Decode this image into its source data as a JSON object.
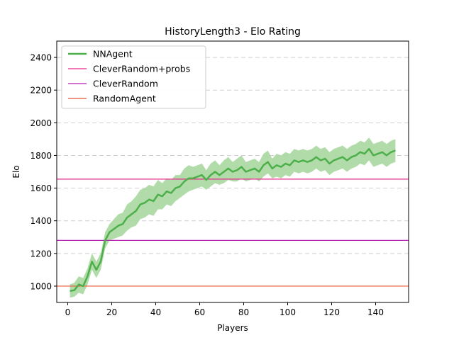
{
  "chart_data": {
    "type": "line",
    "title": "HistoryLength3 - Elo Rating",
    "xlabel": "Players",
    "ylabel": "Elo",
    "xlim": [
      -5,
      155
    ],
    "ylim": [
      900,
      2500
    ],
    "xticks": [
      0,
      20,
      40,
      60,
      80,
      100,
      120,
      140
    ],
    "yticks": [
      1000,
      1200,
      1400,
      1600,
      1800,
      2000,
      2200,
      2400
    ],
    "grid": "horizontal dashed",
    "legend_position": "top-left",
    "series": [
      {
        "name": "NNAgent",
        "color": "#4daf4a",
        "band_color": "#a8d8a0",
        "x": [
          1,
          3,
          5,
          7,
          9,
          11,
          13,
          15,
          17,
          19,
          21,
          23,
          25,
          27,
          29,
          31,
          33,
          35,
          37,
          39,
          41,
          43,
          45,
          47,
          49,
          51,
          53,
          55,
          57,
          59,
          61,
          63,
          65,
          67,
          69,
          71,
          73,
          75,
          77,
          79,
          81,
          83,
          85,
          87,
          89,
          91,
          93,
          95,
          97,
          99,
          101,
          103,
          105,
          107,
          109,
          111,
          113,
          115,
          117,
          119,
          121,
          123,
          125,
          127,
          129,
          131,
          133,
          135,
          137,
          139,
          141,
          143,
          145,
          147,
          149
        ],
        "values": [
          970,
          975,
          1010,
          1000,
          1060,
          1150,
          1100,
          1150,
          1280,
          1330,
          1350,
          1370,
          1380,
          1420,
          1440,
          1460,
          1500,
          1510,
          1530,
          1520,
          1560,
          1550,
          1580,
          1570,
          1600,
          1610,
          1640,
          1660,
          1660,
          1670,
          1680,
          1650,
          1680,
          1700,
          1680,
          1700,
          1720,
          1700,
          1710,
          1730,
          1700,
          1710,
          1720,
          1700,
          1740,
          1760,
          1720,
          1740,
          1730,
          1750,
          1740,
          1770,
          1760,
          1770,
          1760,
          1770,
          1790,
          1770,
          1780,
          1750,
          1770,
          1780,
          1790,
          1770,
          1790,
          1800,
          1820,
          1810,
          1840,
          1800,
          1810,
          1820,
          1800,
          1820,
          1830
        ],
        "band_lower": [
          930,
          935,
          960,
          950,
          1010,
          1100,
          1050,
          1100,
          1230,
          1280,
          1290,
          1300,
          1310,
          1340,
          1360,
          1370,
          1410,
          1420,
          1440,
          1430,
          1470,
          1470,
          1500,
          1490,
          1520,
          1540,
          1560,
          1580,
          1590,
          1600,
          1610,
          1590,
          1610,
          1630,
          1620,
          1630,
          1650,
          1640,
          1640,
          1660,
          1640,
          1650,
          1660,
          1640,
          1670,
          1690,
          1660,
          1670,
          1660,
          1680,
          1670,
          1700,
          1690,
          1700,
          1690,
          1700,
          1720,
          1700,
          1710,
          1680,
          1700,
          1710,
          1720,
          1700,
          1720,
          1730,
          1750,
          1740,
          1770,
          1730,
          1740,
          1750,
          1730,
          1750,
          1760
        ],
        "band_upper": [
          1010,
          1020,
          1060,
          1050,
          1110,
          1200,
          1150,
          1200,
          1330,
          1380,
          1410,
          1440,
          1450,
          1500,
          1520,
          1550,
          1590,
          1600,
          1620,
          1610,
          1650,
          1630,
          1660,
          1650,
          1680,
          1680,
          1720,
          1740,
          1730,
          1740,
          1750,
          1710,
          1750,
          1770,
          1740,
          1770,
          1790,
          1760,
          1780,
          1800,
          1760,
          1770,
          1780,
          1760,
          1810,
          1830,
          1780,
          1810,
          1800,
          1820,
          1810,
          1840,
          1830,
          1840,
          1830,
          1840,
          1860,
          1840,
          1850,
          1820,
          1840,
          1850,
          1860,
          1840,
          1860,
          1870,
          1890,
          1880,
          1910,
          1870,
          1880,
          1890,
          1870,
          1890,
          1900
        ]
      },
      {
        "name": "CleverRandom+probs",
        "color": "#e7298a",
        "constant": 1655
      },
      {
        "name": "CleverRandom",
        "color": "#b41fb4",
        "constant": 1280
      },
      {
        "name": "RandomAgent",
        "color": "#e8553a",
        "constant": 1000
      }
    ]
  }
}
